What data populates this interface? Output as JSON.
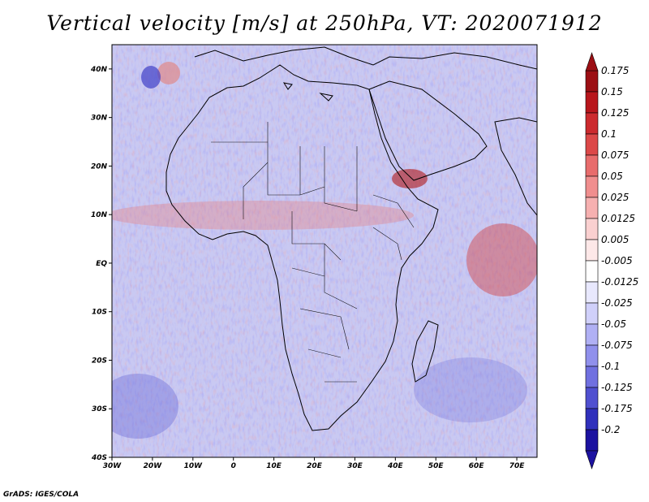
{
  "title": "Vertical velocity [m/s] at 250hPa, VT: 2020071912",
  "credit": "GrADS: IGES/COLA",
  "map": {
    "region": "Africa and surrounding oceans",
    "lon_range": [
      -30,
      75
    ],
    "lat_range": [
      -40,
      45
    ],
    "lon_ticks": [
      "30W",
      "20W",
      "10W",
      "0",
      "10E",
      "20E",
      "30E",
      "40E",
      "50E",
      "60E",
      "70E"
    ],
    "lat_ticks": [
      "40N",
      "30N",
      "20N",
      "10N",
      "EQ",
      "10S",
      "20S",
      "30S",
      "40S"
    ]
  },
  "colorbar": {
    "labels": [
      "0.175",
      "0.15",
      "0.125",
      "0.1",
      "0.075",
      "0.05",
      "0.025",
      "0.0125",
      "0.005",
      "-0.005",
      "-0.0125",
      "-0.025",
      "-0.05",
      "-0.075",
      "-0.1",
      "-0.125",
      "-0.175",
      "-0.2"
    ],
    "colors": [
      "#9c0f14",
      "#b8161c",
      "#cc2a2e",
      "#dc4848",
      "#e86c6c",
      "#f08e8e",
      "#f6b0b0",
      "#fad0d0",
      "#fde8e8",
      "#ffffff",
      "#e8e8fd",
      "#d0d0fa",
      "#b0b0f4",
      "#9090ec",
      "#7070e0",
      "#5050d0",
      "#3030bc",
      "#1c12a0"
    ]
  }
}
